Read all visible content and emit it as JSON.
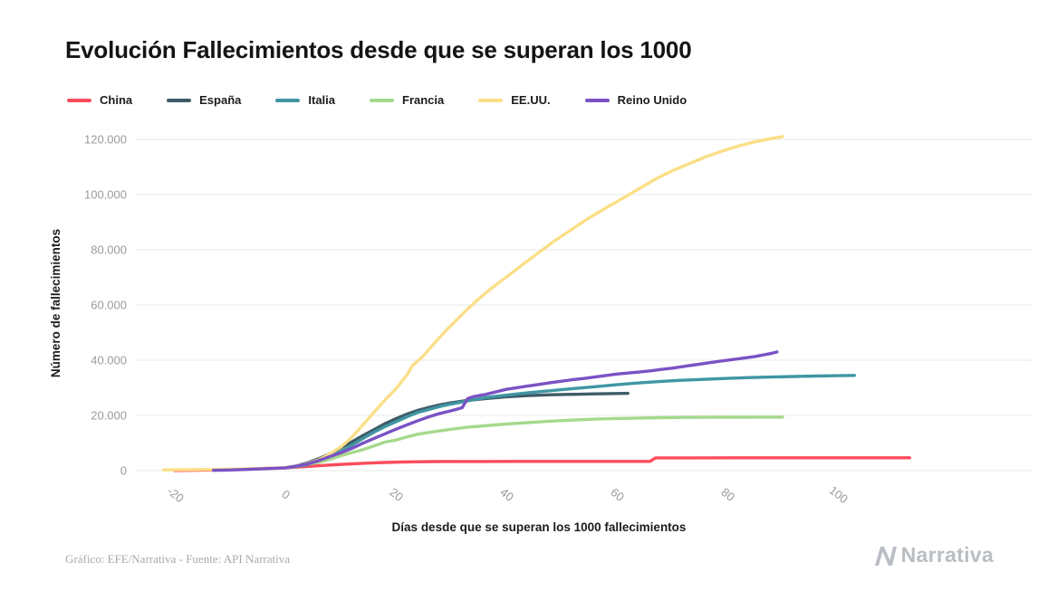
{
  "title": "Evolución Fallecimientos desde que se superan los 1000",
  "footer": {
    "credit": "Gráfico: EFE/Narrativa - Fuente: API Narrativa",
    "brand": "Narrativa"
  },
  "colors": {
    "grid": "#e9e9e9",
    "tick_text": "#9b9b9b",
    "brand_gray": "#b9bec4"
  },
  "chart_data": {
    "type": "line",
    "title": "Evolución Fallecimientos desde que se superan los 1000",
    "xlabel": "Días desde que se superan los 1000 fallecimientos",
    "ylabel": "Número de fallecimientos",
    "xlim": [
      -27,
      118
    ],
    "ylim": [
      0,
      126000
    ],
    "grid": "horizontal",
    "legend_position": "top-left",
    "x_ticks": [
      {
        "value": -20,
        "label": "-20"
      },
      {
        "value": 0,
        "label": "0"
      },
      {
        "value": 20,
        "label": "20"
      },
      {
        "value": 40,
        "label": "40"
      },
      {
        "value": 60,
        "label": "60"
      },
      {
        "value": 80,
        "label": "80"
      },
      {
        "value": 100,
        "label": "100"
      }
    ],
    "y_ticks": [
      {
        "value": 0,
        "label": "0"
      },
      {
        "value": 20000,
        "label": "20.000"
      },
      {
        "value": 40000,
        "label": "40.000"
      },
      {
        "value": 60000,
        "label": "60.000"
      },
      {
        "value": 80000,
        "label": "80.000"
      },
      {
        "value": 100000,
        "label": "100.000"
      },
      {
        "value": 120000,
        "label": "120.000"
      }
    ],
    "series": [
      {
        "name": "China",
        "color": "#fb4d5c",
        "points": [
          [
            -20,
            25
          ],
          [
            -16,
            130
          ],
          [
            -12,
            320
          ],
          [
            -8,
            560
          ],
          [
            -4,
            800
          ],
          [
            0,
            1000
          ],
          [
            3,
            1380
          ],
          [
            6,
            1770
          ],
          [
            9,
            2120
          ],
          [
            12,
            2450
          ],
          [
            15,
            2720
          ],
          [
            18,
            2940
          ],
          [
            21,
            3100
          ],
          [
            24,
            3210
          ],
          [
            27,
            3270
          ],
          [
            30,
            3300
          ],
          [
            36,
            3320
          ],
          [
            42,
            3330
          ],
          [
            50,
            3338
          ],
          [
            58,
            3344
          ],
          [
            66,
            3350
          ],
          [
            67,
            4630
          ],
          [
            74,
            4636
          ],
          [
            82,
            4640
          ],
          [
            92,
            4642
          ],
          [
            102,
            4643
          ],
          [
            113,
            4645
          ]
        ]
      },
      {
        "name": "España",
        "color": "#3e5c68",
        "points": [
          [
            0,
            1000
          ],
          [
            2,
            1720
          ],
          [
            4,
            2800
          ],
          [
            6,
            4300
          ],
          [
            8,
            6000
          ],
          [
            10,
            8200
          ],
          [
            12,
            10350
          ],
          [
            14,
            12650
          ],
          [
            16,
            14800
          ],
          [
            18,
            16970
          ],
          [
            20,
            18800
          ],
          [
            22,
            20450
          ],
          [
            24,
            21850
          ],
          [
            26,
            22900
          ],
          [
            28,
            23820
          ],
          [
            30,
            24550
          ],
          [
            33,
            25430
          ],
          [
            36,
            26070
          ],
          [
            40,
            26740
          ],
          [
            44,
            27180
          ],
          [
            48,
            27480
          ],
          [
            52,
            27650
          ],
          [
            56,
            27800
          ],
          [
            60,
            27940
          ],
          [
            62,
            28000
          ]
        ]
      },
      {
        "name": "Italia",
        "color": "#4096a3",
        "points": [
          [
            0,
            1016
          ],
          [
            2,
            1440
          ],
          [
            4,
            2160
          ],
          [
            6,
            3400
          ],
          [
            8,
            4830
          ],
          [
            10,
            6820
          ],
          [
            12,
            9140
          ],
          [
            14,
            11590
          ],
          [
            16,
            13915
          ],
          [
            18,
            15890
          ],
          [
            20,
            17670
          ],
          [
            22,
            19470
          ],
          [
            24,
            21070
          ],
          [
            26,
            22170
          ],
          [
            28,
            23230
          ],
          [
            30,
            24115
          ],
          [
            33,
            25250
          ],
          [
            36,
            26380
          ],
          [
            40,
            27360
          ],
          [
            44,
            28240
          ],
          [
            48,
            28940
          ],
          [
            52,
            29690
          ],
          [
            56,
            30400
          ],
          [
            60,
            31110
          ],
          [
            64,
            31760
          ],
          [
            68,
            32330
          ],
          [
            72,
            32740
          ],
          [
            76,
            33070
          ],
          [
            80,
            33420
          ],
          [
            84,
            33690
          ],
          [
            88,
            33900
          ],
          [
            92,
            34100
          ],
          [
            96,
            34270
          ],
          [
            100,
            34400
          ],
          [
            103,
            34500
          ]
        ]
      },
      {
        "name": "Francia",
        "color": "#a5d98c",
        "points": [
          [
            0,
            1100
          ],
          [
            2,
            1700
          ],
          [
            4,
            2310
          ],
          [
            6,
            3030
          ],
          [
            8,
            4030
          ],
          [
            10,
            5390
          ],
          [
            12,
            6510
          ],
          [
            14,
            7560
          ],
          [
            16,
            8910
          ],
          [
            18,
            10330
          ],
          [
            20,
            11060
          ],
          [
            22,
            12210
          ],
          [
            24,
            13200
          ],
          [
            26,
            13830
          ],
          [
            28,
            14410
          ],
          [
            30,
            14970
          ],
          [
            33,
            15730
          ],
          [
            36,
            16240
          ],
          [
            40,
            16900
          ],
          [
            44,
            17400
          ],
          [
            48,
            17920
          ],
          [
            52,
            18290
          ],
          [
            56,
            18640
          ],
          [
            60,
            18870
          ],
          [
            64,
            19060
          ],
          [
            68,
            19180
          ],
          [
            72,
            19270
          ],
          [
            76,
            19320
          ],
          [
            80,
            19350
          ],
          [
            85,
            19370
          ],
          [
            90,
            19385
          ]
        ]
      },
      {
        "name": "EE.UU.",
        "color": "#fbdf87",
        "points": [
          [
            -22,
            260
          ],
          [
            -18,
            330
          ],
          [
            -14,
            420
          ],
          [
            -10,
            540
          ],
          [
            -6,
            700
          ],
          [
            -3,
            850
          ],
          [
            0,
            1050
          ],
          [
            2,
            1600
          ],
          [
            4,
            2500
          ],
          [
            6,
            3900
          ],
          [
            8,
            6000
          ],
          [
            10,
            8500
          ],
          [
            12,
            12000
          ],
          [
            14,
            16500
          ],
          [
            16,
            21000
          ],
          [
            18,
            25500
          ],
          [
            20,
            29600
          ],
          [
            22,
            34600
          ],
          [
            23,
            38000
          ],
          [
            25,
            41600
          ],
          [
            27,
            46200
          ],
          [
            29,
            50600
          ],
          [
            31,
            54600
          ],
          [
            33,
            58600
          ],
          [
            35,
            62200
          ],
          [
            37,
            65600
          ],
          [
            40,
            70100
          ],
          [
            43,
            74700
          ],
          [
            46,
            79200
          ],
          [
            49,
            83600
          ],
          [
            52,
            87600
          ],
          [
            55,
            91600
          ],
          [
            58,
            95100
          ],
          [
            61,
            98600
          ],
          [
            64,
            102100
          ],
          [
            67,
            105600
          ],
          [
            70,
            108600
          ],
          [
            73,
            111100
          ],
          [
            76,
            113600
          ],
          [
            79,
            115700
          ],
          [
            82,
            117600
          ],
          [
            85,
            119100
          ],
          [
            88,
            120300
          ],
          [
            90,
            121000
          ]
        ]
      },
      {
        "name": "Reino Unido",
        "color": "#7a52c4",
        "points": [
          [
            -13,
            110
          ],
          [
            -10,
            220
          ],
          [
            -7,
            420
          ],
          [
            -4,
            680
          ],
          [
            0,
            1020
          ],
          [
            2,
            1650
          ],
          [
            4,
            2360
          ],
          [
            6,
            3610
          ],
          [
            8,
            5060
          ],
          [
            10,
            6430
          ],
          [
            12,
            8000
          ],
          [
            14,
            9900
          ],
          [
            16,
            11600
          ],
          [
            18,
            13300
          ],
          [
            20,
            15000
          ],
          [
            22,
            16550
          ],
          [
            24,
            18100
          ],
          [
            26,
            19510
          ],
          [
            28,
            20730
          ],
          [
            30,
            21680
          ],
          [
            32,
            22800
          ],
          [
            33,
            26100
          ],
          [
            34,
            26800
          ],
          [
            36,
            27510
          ],
          [
            38,
            28450
          ],
          [
            40,
            29430
          ],
          [
            42,
            30080
          ],
          [
            44,
            30690
          ],
          [
            46,
            31240
          ],
          [
            48,
            31860
          ],
          [
            50,
            32380
          ],
          [
            52,
            32950
          ],
          [
            54,
            33370
          ],
          [
            56,
            33910
          ],
          [
            58,
            34470
          ],
          [
            60,
            34980
          ],
          [
            62,
            35340
          ],
          [
            64,
            35710
          ],
          [
            66,
            36120
          ],
          [
            68,
            36640
          ],
          [
            70,
            37120
          ],
          [
            73,
            38000
          ],
          [
            76,
            38900
          ],
          [
            79,
            39730
          ],
          [
            82,
            40540
          ],
          [
            85,
            41360
          ],
          [
            88,
            42500
          ],
          [
            89,
            43000
          ]
        ]
      }
    ]
  }
}
